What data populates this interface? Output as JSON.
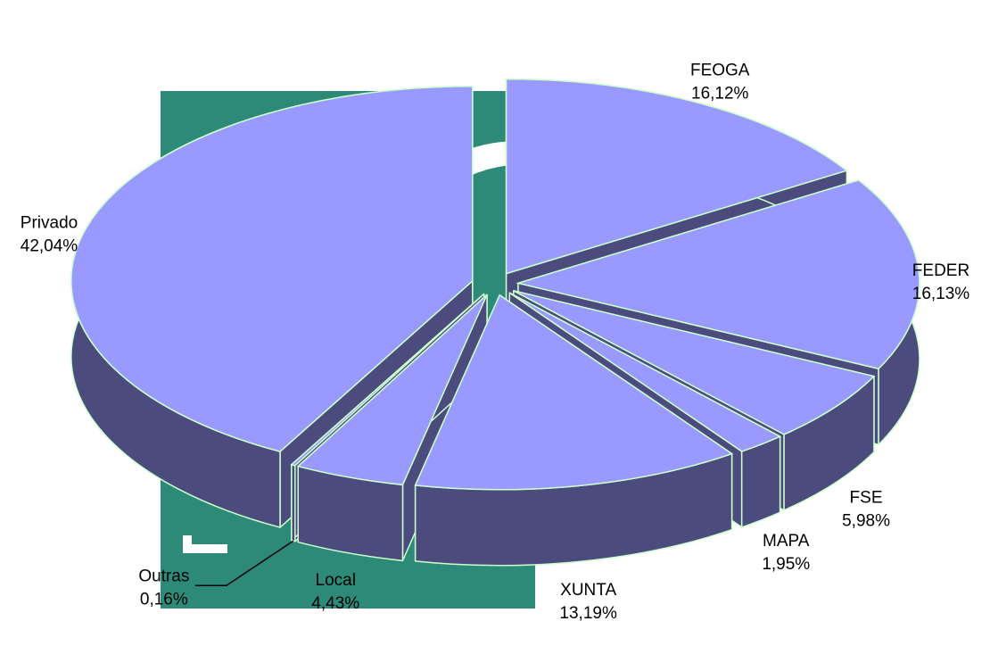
{
  "chart_data": {
    "type": "pie3d",
    "categories": [
      "FEOGA",
      "FEDER",
      "FSE",
      "MAPA",
      "XUNTA",
      "Local",
      "Outras",
      "Privado"
    ],
    "values": [
      16.12,
      16.13,
      5.98,
      1.95,
      13.19,
      4.43,
      0.16,
      42.04
    ],
    "value_labels": [
      "16,12%",
      "16,13%",
      "5,98%",
      "1,95%",
      "13,19%",
      "4,43%",
      "0,16%",
      "42,04%"
    ],
    "top_color": "#9999ff",
    "side_color": "#4b4b7d",
    "edge_color": "#ccffcc"
  }
}
